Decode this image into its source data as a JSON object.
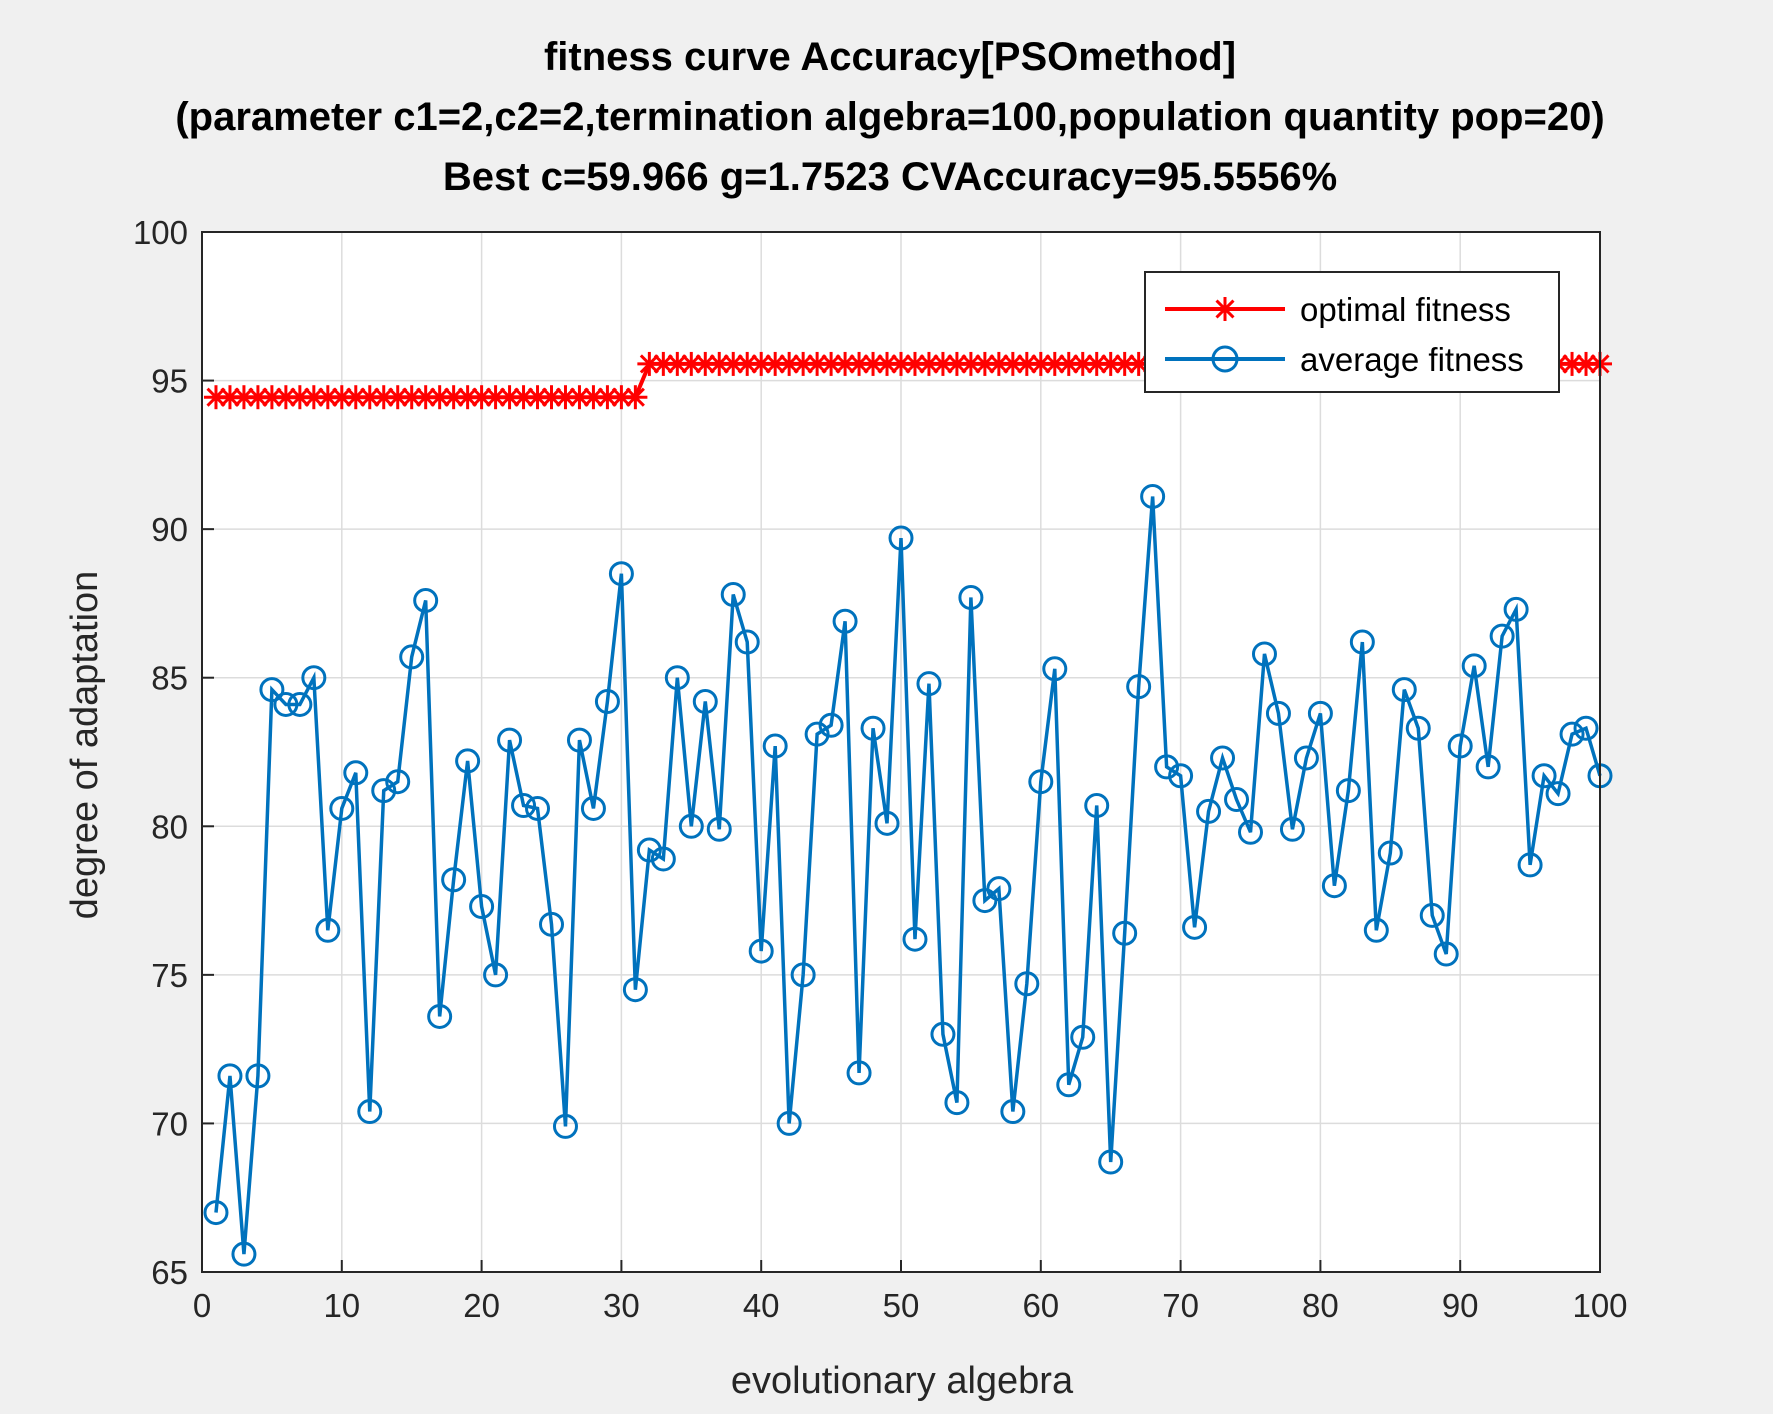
{
  "chart_data": {
    "type": "line",
    "title": [
      "fitness curve Accuracy[PSOmethod]",
      "(parameter c1=2,c2=2,termination algebra=100,population quantity pop=20)",
      "Best c=59.966 g=1.7523 CVAccuracy=95.5556%"
    ],
    "xlabel": "evolutionary algebra",
    "ylabel": "degree of adaptation",
    "xlim": [
      0,
      100
    ],
    "ylim": [
      65,
      100
    ],
    "xticks": [
      0,
      10,
      20,
      30,
      40,
      50,
      60,
      70,
      80,
      90,
      100
    ],
    "yticks": [
      65,
      70,
      75,
      80,
      85,
      90,
      95,
      100
    ],
    "grid": true,
    "legend_position": "top-right",
    "x": [
      1,
      2,
      3,
      4,
      5,
      6,
      7,
      8,
      9,
      10,
      11,
      12,
      13,
      14,
      15,
      16,
      17,
      18,
      19,
      20,
      21,
      22,
      23,
      24,
      25,
      26,
      27,
      28,
      29,
      30,
      31,
      32,
      33,
      34,
      35,
      36,
      37,
      38,
      39,
      40,
      41,
      42,
      43,
      44,
      45,
      46,
      47,
      48,
      49,
      50,
      51,
      52,
      53,
      54,
      55,
      56,
      57,
      58,
      59,
      60,
      61,
      62,
      63,
      64,
      65,
      66,
      67,
      68,
      69,
      70,
      71,
      72,
      73,
      74,
      75,
      76,
      77,
      78,
      79,
      80,
      81,
      82,
      83,
      84,
      85,
      86,
      87,
      88,
      89,
      90,
      91,
      92,
      93,
      94,
      95,
      96,
      97,
      98,
      99,
      100
    ],
    "series": [
      {
        "name": "optimal fitness",
        "color": "#ff0000",
        "marker": "asterisk",
        "values": [
          94.44,
          94.44,
          94.44,
          94.44,
          94.44,
          94.44,
          94.44,
          94.44,
          94.44,
          94.44,
          94.44,
          94.44,
          94.44,
          94.44,
          94.44,
          94.44,
          94.44,
          94.44,
          94.44,
          94.44,
          94.44,
          94.44,
          94.44,
          94.44,
          94.44,
          94.44,
          94.44,
          94.44,
          94.44,
          94.44,
          94.44,
          95.56,
          95.56,
          95.56,
          95.56,
          95.56,
          95.56,
          95.56,
          95.56,
          95.56,
          95.56,
          95.56,
          95.56,
          95.56,
          95.56,
          95.56,
          95.56,
          95.56,
          95.56,
          95.56,
          95.56,
          95.56,
          95.56,
          95.56,
          95.56,
          95.56,
          95.56,
          95.56,
          95.56,
          95.56,
          95.56,
          95.56,
          95.56,
          95.56,
          95.56,
          95.56,
          95.56,
          95.56,
          95.56,
          95.56,
          95.56,
          95.56,
          95.56,
          95.56,
          95.56,
          95.56,
          95.56,
          95.56,
          95.56,
          95.56,
          95.56,
          95.56,
          95.56,
          95.56,
          95.56,
          95.56,
          95.56,
          95.56,
          95.56,
          95.56,
          95.56,
          95.56,
          95.56,
          95.56,
          95.56,
          95.56,
          95.56,
          95.56,
          95.56,
          95.56
        ]
      },
      {
        "name": "average fitness",
        "color": "#0072bd",
        "marker": "circle",
        "values": [
          67.0,
          71.6,
          65.6,
          71.6,
          84.6,
          84.1,
          84.1,
          85.0,
          76.5,
          80.6,
          81.8,
          70.4,
          81.2,
          81.5,
          85.7,
          87.6,
          73.6,
          78.2,
          82.2,
          77.3,
          75.0,
          82.9,
          80.7,
          80.6,
          76.7,
          69.9,
          82.9,
          80.6,
          84.2,
          88.5,
          74.5,
          79.2,
          78.9,
          85.0,
          80.0,
          84.2,
          79.9,
          87.8,
          86.2,
          75.8,
          82.7,
          70.0,
          75.0,
          83.1,
          83.4,
          86.9,
          71.7,
          83.3,
          80.1,
          89.7,
          76.2,
          84.8,
          73.0,
          70.7,
          87.7,
          77.5,
          77.9,
          70.4,
          74.7,
          81.5,
          85.3,
          71.3,
          72.9,
          80.7,
          68.7,
          76.4,
          84.7,
          91.1,
          82.0,
          81.7,
          76.6,
          80.5,
          82.3,
          80.9,
          79.8,
          85.8,
          83.8,
          79.9,
          82.3,
          83.8,
          78.0,
          81.2,
          86.2,
          76.5,
          79.1,
          84.6,
          83.3,
          77.0,
          75.7,
          82.7,
          85.4,
          82.0,
          86.4,
          87.3,
          78.7,
          81.7,
          81.1,
          83.1,
          83.3,
          81.7
        ]
      }
    ]
  }
}
